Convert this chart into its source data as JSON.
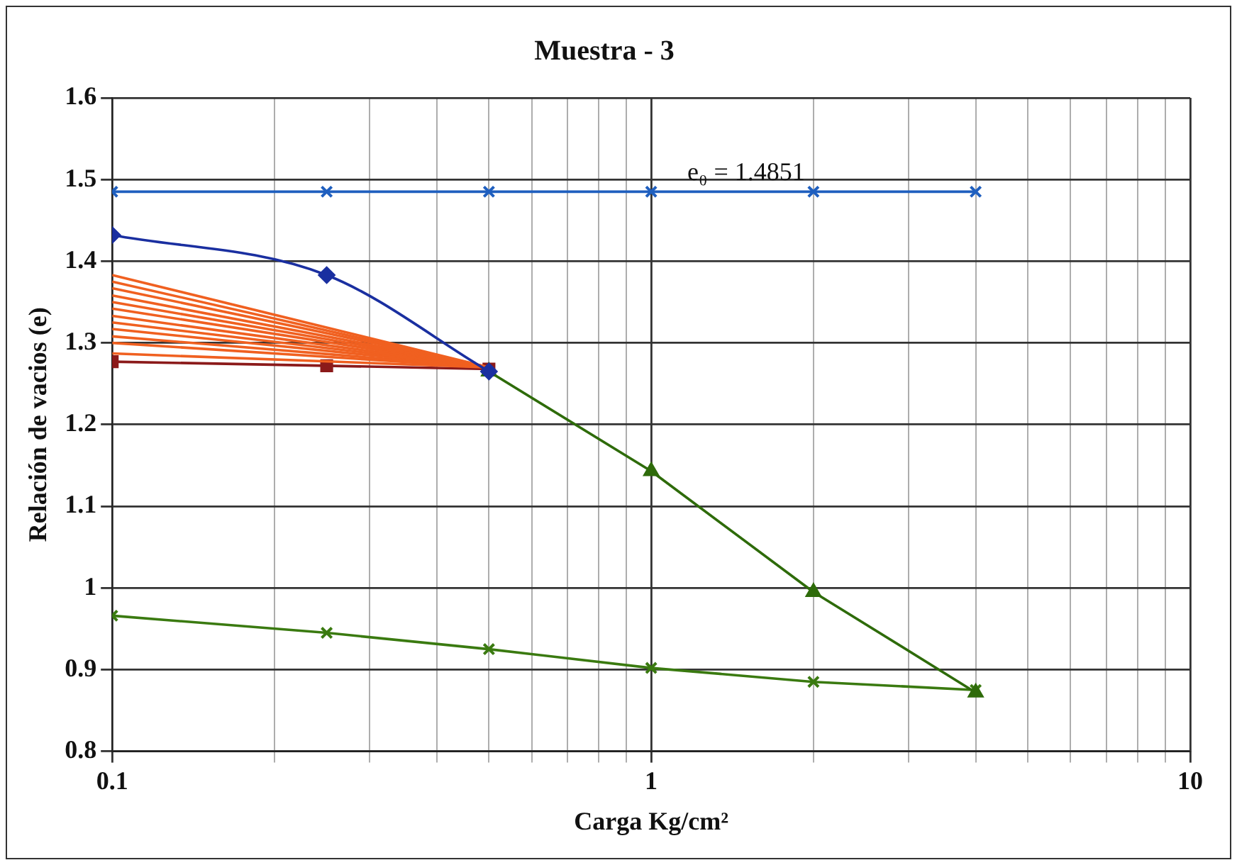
{
  "chart_data": {
    "type": "line",
    "title": "Muestra - 3",
    "xlabel": "Carga Kg/cm²",
    "ylabel": "Relación de vacios (e)",
    "log": "x",
    "grid": true,
    "legend": false,
    "line_style": "solid",
    "xlim": [
      0.1,
      10
    ],
    "xticks": [
      0.1,
      {
        "value": 0.2,
        "label": null
      },
      {
        "value": 0.3,
        "label": null
      },
      {
        "value": 0.4,
        "label": null
      },
      {
        "value": 0.5,
        "label": null
      },
      {
        "value": 0.6,
        "label": null
      },
      {
        "value": 0.7,
        "label": null
      },
      {
        "value": 0.8,
        "label": null
      },
      {
        "value": 0.9,
        "label": null
      },
      1,
      {
        "value": 2,
        "label": null
      },
      {
        "value": 3,
        "label": null
      },
      {
        "value": 4,
        "label": null
      },
      {
        "value": 5,
        "label": null
      },
      {
        "value": 6,
        "label": null
      },
      {
        "value": 7,
        "label": null
      },
      {
        "value": 8,
        "label": null
      },
      {
        "value": 9,
        "label": null
      },
      10
    ],
    "ylim": [
      0.8,
      1.6
    ],
    "yticks": [
      0.8,
      0.9,
      1,
      1.1,
      1.2,
      1.3,
      1.4,
      1.5,
      1.6
    ],
    "annotations": [
      {
        "text": "e₀ = 1.4851",
        "x": 1.5,
        "y": 1.4851
      }
    ],
    "series": [
      {
        "color": "#1f5fbf",
        "marker": "cross",
        "x": [
          0.1,
          0.25,
          0.5,
          1,
          2,
          4
        ],
        "values": [
          1.4851,
          1.4851,
          1.4851,
          1.4851,
          1.4851,
          1.4851
        ]
      },
      {
        "color": "#1a2fa0",
        "marker": "diamond",
        "x": [
          0.1,
          0.25,
          0.5
        ],
        "values": [
          1.432,
          1.383,
          1.265
        ]
      },
      {
        "color": "#2e6b0a",
        "marker": "triangle",
        "x": [
          0.5,
          1,
          2,
          4
        ],
        "values": [
          1.265,
          1.143,
          0.995,
          0.872
        ]
      },
      {
        "color": "#3a7a10",
        "marker": "cross",
        "x": [
          0.1,
          0.25,
          0.5,
          1,
          2,
          4
        ],
        "values": [
          0.966,
          0.945,
          0.925,
          0.902,
          0.885,
          0.875
        ]
      },
      {
        "color": "#f06020",
        "marker": "none",
        "x": [
          0.1,
          0.5
        ],
        "values": [
          1.383,
          1.27
        ]
      },
      {
        "color": "#f06020",
        "marker": "none",
        "x": [
          0.1,
          0.5
        ],
        "values": [
          1.375,
          1.27
        ]
      },
      {
        "color": "#f06020",
        "marker": "none",
        "x": [
          0.1,
          0.5
        ],
        "values": [
          1.367,
          1.27
        ]
      },
      {
        "color": "#f06020",
        "marker": "none",
        "x": [
          0.1,
          0.5
        ],
        "values": [
          1.358,
          1.27
        ]
      },
      {
        "color": "#f06020",
        "marker": "none",
        "x": [
          0.1,
          0.5
        ],
        "values": [
          1.35,
          1.27
        ]
      },
      {
        "color": "#f06020",
        "marker": "none",
        "x": [
          0.1,
          0.5
        ],
        "values": [
          1.342,
          1.27
        ]
      },
      {
        "color": "#f06020",
        "marker": "none",
        "x": [
          0.1,
          0.5
        ],
        "values": [
          1.333,
          1.27
        ]
      },
      {
        "color": "#f06020",
        "marker": "none",
        "x": [
          0.1,
          0.5
        ],
        "values": [
          1.325,
          1.27
        ]
      },
      {
        "color": "#f06020",
        "marker": "none",
        "x": [
          0.1,
          0.5
        ],
        "values": [
          1.317,
          1.27
        ]
      },
      {
        "color": "#f06020",
        "marker": "none",
        "x": [
          0.1,
          0.5
        ],
        "values": [
          1.308,
          1.27
        ]
      },
      {
        "color": "#f06020",
        "marker": "none",
        "x": [
          0.1,
          0.5
        ],
        "values": [
          1.3,
          1.27
        ]
      },
      {
        "color": "#f06020",
        "marker": "none",
        "x": [
          0.1,
          0.5
        ],
        "values": [
          1.287,
          1.27
        ]
      },
      {
        "color": "#8b1a1a",
        "marker": "square",
        "x": [
          0.5,
          0.25,
          0.1
        ],
        "values": [
          1.268,
          1.272,
          1.277
        ]
      }
    ]
  }
}
